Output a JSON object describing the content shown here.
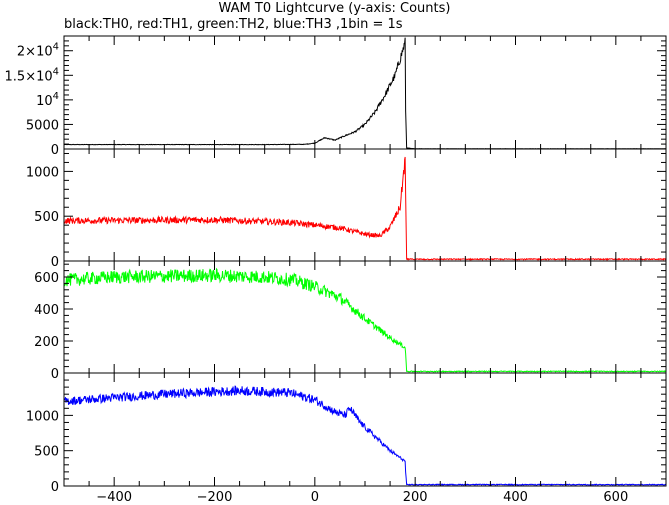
{
  "chart_data": {
    "type": "line",
    "title": "WAM T0 Lightcurve (y-axis: Counts)",
    "subtitle": "black:TH0, red:TH1, green:TH2, blue:TH3 ,1bin = 1s",
    "x_range": [
      -500,
      700
    ],
    "x_ticks": [
      -400,
      -200,
      0,
      200,
      400,
      600
    ],
    "x_tick_labels": [
      "−400",
      "−200",
      "0",
      "200",
      "400",
      "600"
    ],
    "panels": [
      {
        "name": "TH0",
        "color": "#000000",
        "ylim": [
          0,
          23000
        ],
        "y_ticks": [
          0,
          5000,
          10000,
          15000,
          20000
        ],
        "y_tick_labels": [
          {
            "base": "0",
            "exp": ""
          },
          {
            "base": "5000",
            "exp": ""
          },
          {
            "base": "10",
            "exp": "4"
          },
          {
            "base": "1.5×10",
            "exp": "4"
          },
          {
            "base": "2×10",
            "exp": "4"
          }
        ],
        "points": [
          [
            -500,
            900
          ],
          [
            -300,
            900
          ],
          [
            -100,
            900
          ],
          [
            -20,
            950
          ],
          [
            0,
            1200
          ],
          [
            20,
            2300
          ],
          [
            40,
            1800
          ],
          [
            60,
            2700
          ],
          [
            80,
            3500
          ],
          [
            100,
            5000
          ],
          [
            120,
            7500
          ],
          [
            140,
            11000
          ],
          [
            160,
            15000
          ],
          [
            175,
            20000
          ],
          [
            180,
            21700
          ],
          [
            181,
            8000
          ],
          [
            183,
            200
          ],
          [
            200,
            50
          ],
          [
            700,
            50
          ]
        ],
        "noise": 0.05
      },
      {
        "name": "TH1",
        "color": "#ff0000",
        "ylim": [
          0,
          1250
        ],
        "y_ticks": [
          0,
          500,
          1000
        ],
        "y_tick_labels": [
          {
            "base": "0",
            "exp": ""
          },
          {
            "base": "500",
            "exp": ""
          },
          {
            "base": "1000",
            "exp": ""
          }
        ],
        "points": [
          [
            -500,
            450
          ],
          [
            -200,
            460
          ],
          [
            -50,
            430
          ],
          [
            0,
            400
          ],
          [
            50,
            370
          ],
          [
            100,
            300
          ],
          [
            130,
            280
          ],
          [
            150,
            380
          ],
          [
            170,
            600
          ],
          [
            180,
            1150
          ],
          [
            181,
            700
          ],
          [
            183,
            20
          ],
          [
            700,
            20
          ]
        ],
        "noise": 0.08
      },
      {
        "name": "TH2",
        "color": "#00ff00",
        "ylim": [
          0,
          700
        ],
        "y_ticks": [
          0,
          200,
          400,
          600
        ],
        "y_tick_labels": [
          {
            "base": "0",
            "exp": ""
          },
          {
            "base": "200",
            "exp": ""
          },
          {
            "base": "400",
            "exp": ""
          },
          {
            "base": "600",
            "exp": ""
          }
        ],
        "points": [
          [
            -500,
            580
          ],
          [
            -400,
            600
          ],
          [
            -200,
            610
          ],
          [
            -100,
            600
          ],
          [
            -40,
            580
          ],
          [
            0,
            540
          ],
          [
            50,
            470
          ],
          [
            100,
            340
          ],
          [
            150,
            220
          ],
          [
            180,
            160
          ],
          [
            181,
            120
          ],
          [
            183,
            10
          ],
          [
            700,
            10
          ]
        ],
        "noise": 0.07
      },
      {
        "name": "TH3",
        "color": "#0000ff",
        "ylim": [
          0,
          1600
        ],
        "y_ticks": [
          0,
          500,
          1000
        ],
        "y_tick_labels": [
          {
            "base": "0",
            "exp": ""
          },
          {
            "base": "500",
            "exp": ""
          },
          {
            "base": "1000",
            "exp": ""
          }
        ],
        "points": [
          [
            -500,
            1200
          ],
          [
            -300,
            1300
          ],
          [
            -150,
            1350
          ],
          [
            -50,
            1320
          ],
          [
            0,
            1220
          ],
          [
            40,
            1050
          ],
          [
            60,
            1000
          ],
          [
            70,
            1100
          ],
          [
            90,
            900
          ],
          [
            120,
            700
          ],
          [
            150,
            500
          ],
          [
            180,
            350
          ],
          [
            181,
            200
          ],
          [
            183,
            20
          ],
          [
            700,
            20
          ]
        ],
        "noise": 0.05
      }
    ]
  }
}
